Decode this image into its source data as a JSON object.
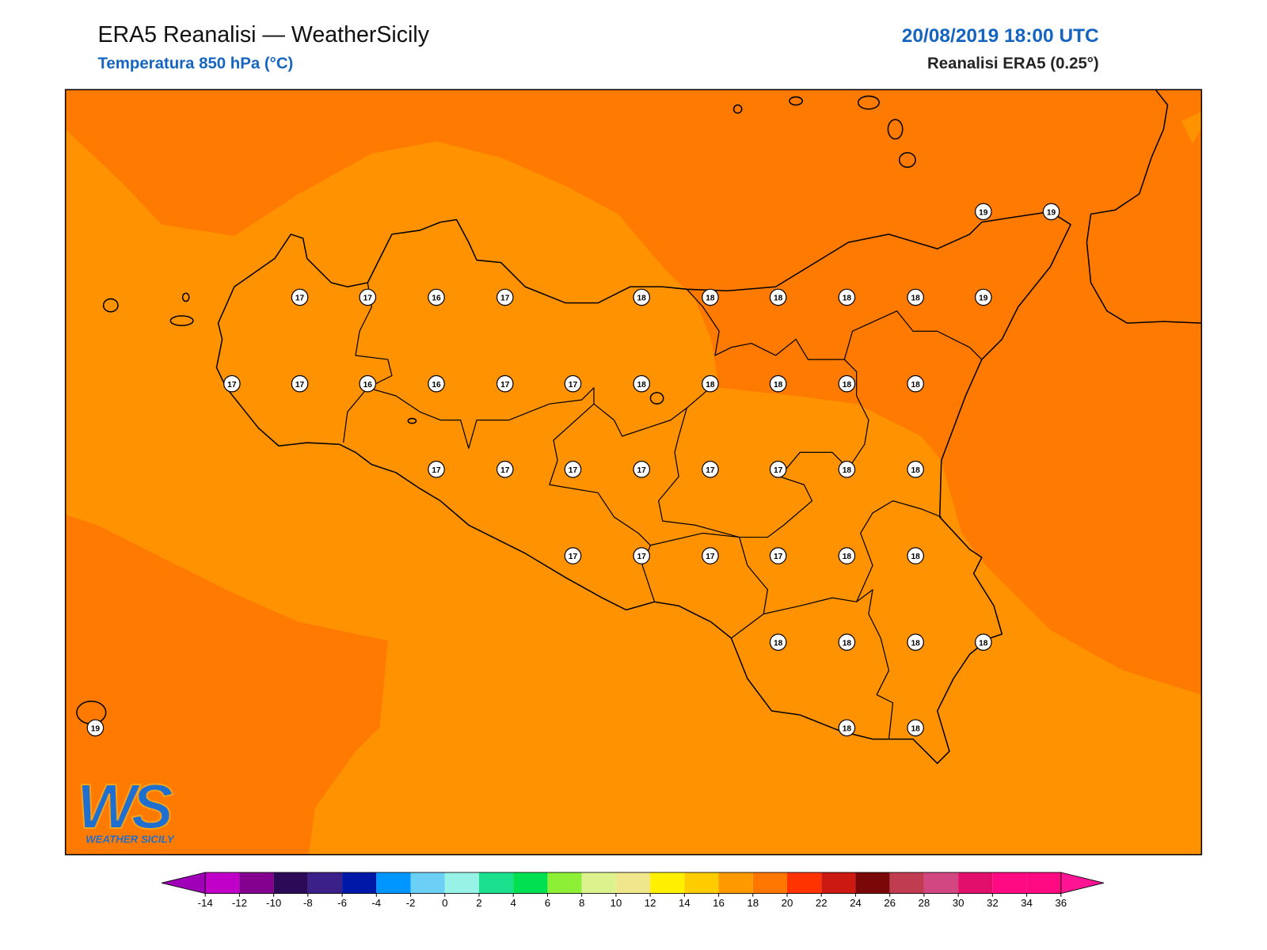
{
  "header": {
    "title": "ERA5 Reanalisi — WeatherSicily",
    "subtitle": "Temperatura 850 hPa (°C)",
    "date": "20/08/2019 18:00 UTC",
    "source": "Reanalisi ERA5 (0.25°)"
  },
  "map": {
    "field_colors": [
      "#ff9200",
      "#ff7a00"
    ],
    "stations": [
      19,
      19,
      17,
      17,
      16,
      17,
      18,
      18,
      18,
      18,
      18,
      19,
      17,
      17,
      16,
      16,
      17,
      17,
      18,
      18,
      18,
      18,
      18,
      17,
      17,
      17,
      17,
      17,
      17,
      18,
      18,
      17,
      17,
      17,
      17,
      18,
      18,
      18,
      18,
      18,
      18,
      19,
      18,
      18
    ]
  },
  "colorbar": {
    "ticks": [
      -14,
      -12,
      -10,
      -8,
      -6,
      -4,
      -2,
      0,
      2,
      4,
      6,
      8,
      10,
      12,
      14,
      16,
      18,
      20,
      22,
      24,
      26,
      28,
      30,
      32,
      34,
      36
    ],
    "colors": [
      "#c000c8",
      "#84008f",
      "#2c0a58",
      "#3a2088",
      "#0018a8",
      "#0096ff",
      "#6ccff6",
      "#98f2e6",
      "#1ae08e",
      "#00e050",
      "#8ef036",
      "#dcf28c",
      "#f0e68c",
      "#fff000",
      "#ffcc00",
      "#ff9900",
      "#ff7700",
      "#ff3300",
      "#cc1a12",
      "#7a0808",
      "#c03c50",
      "#d24682",
      "#e2106c",
      "#ff0a82",
      "#ff0a82"
    ],
    "under": "#a000b8",
    "over": "#ff1493"
  },
  "logo": {
    "mark": "WS",
    "text": "WEATHER SICILY"
  }
}
